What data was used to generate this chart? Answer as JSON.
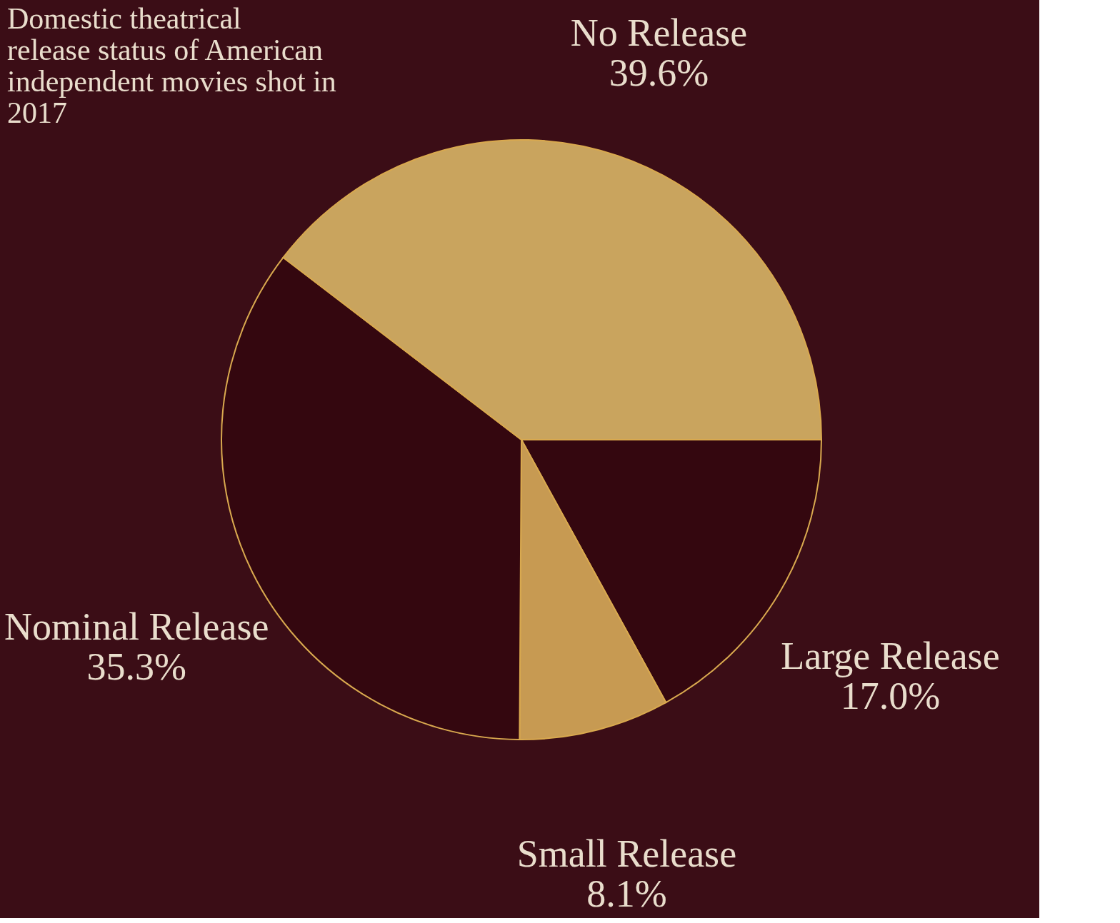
{
  "chart_data": {
    "type": "pie",
    "title": "Domestic theatrical release status of American independent movies shot in 2017",
    "categories": [
      "Large Release",
      "Small Release",
      "Nominal Release",
      "No Release"
    ],
    "values": [
      17.0,
      8.1,
      35.3,
      39.6
    ],
    "value_labels": [
      "17.0%",
      "8.1%",
      "35.3%",
      "39.6%"
    ],
    "colors": [
      "#34070f",
      "#c79a52",
      "#34070f",
      "#c9a45e"
    ],
    "legend": false
  }
}
